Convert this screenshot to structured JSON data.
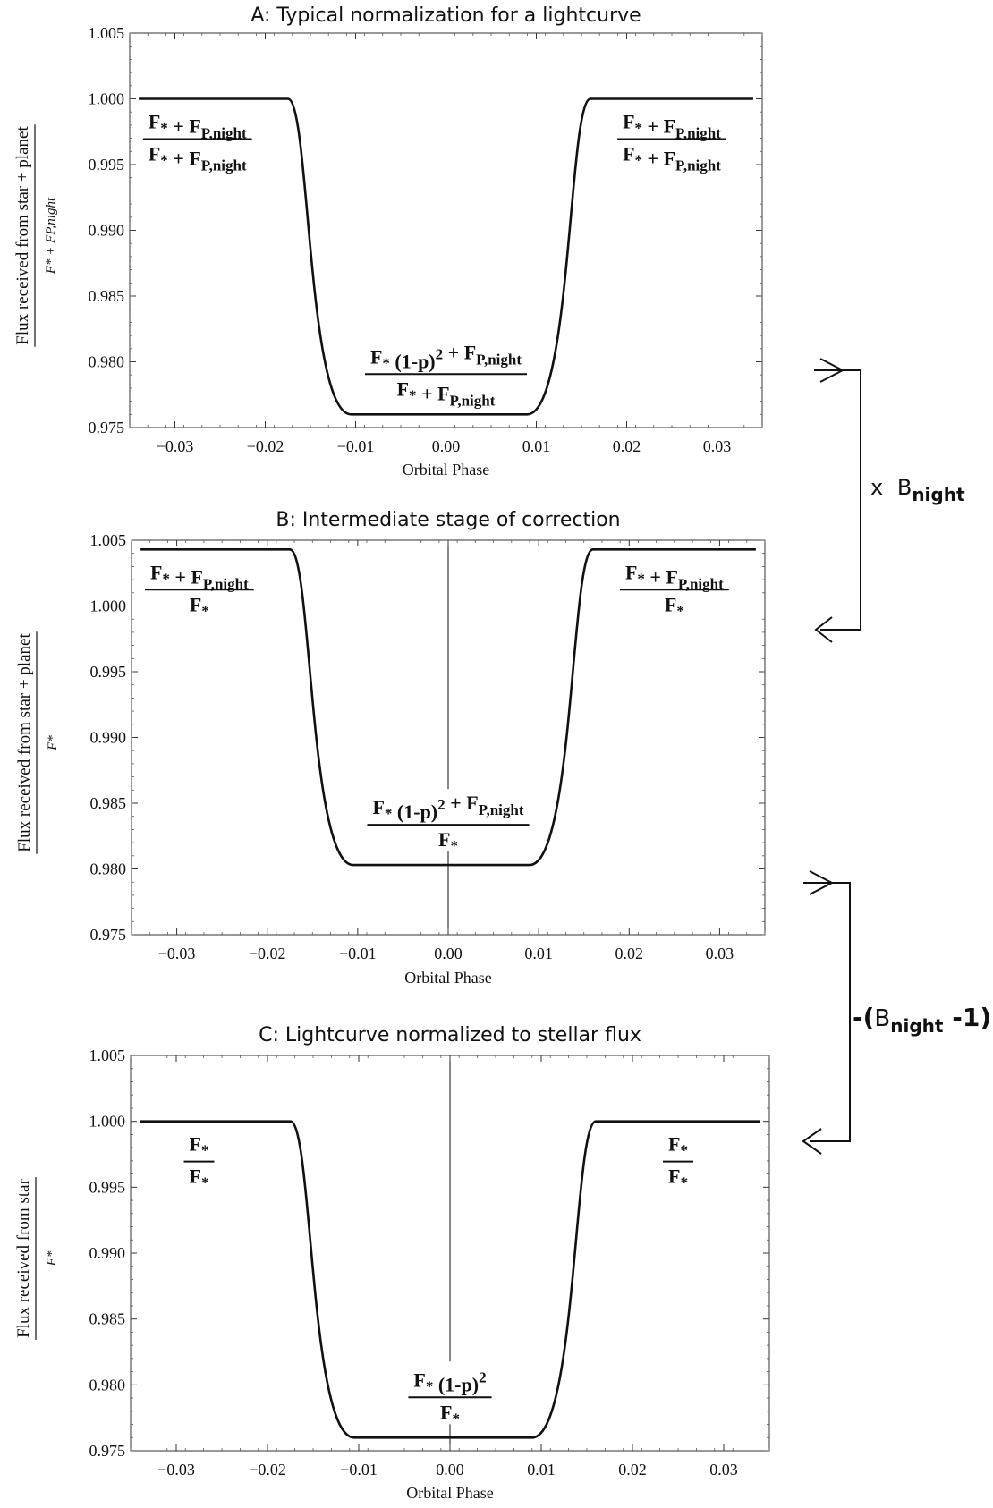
{
  "chart_data": [
    {
      "type": "line",
      "title": "A: Typical normalization for a lightcurve",
      "xlabel": "Orbital Phase",
      "ylabel_numerator": "Flux received from star + planet",
      "ylabel_denominator": "F* + FP,night",
      "xlim": [
        -0.035,
        0.035
      ],
      "ylim": [
        0.975,
        1.005
      ],
      "xticks": [
        "−0.03",
        "−0.02",
        "−0.01",
        "0.00",
        "0.01",
        "0.02",
        "0.03"
      ],
      "yticks": [
        "1.005",
        "1.000",
        "0.995",
        "0.990",
        "0.985",
        "0.980",
        "0.975"
      ],
      "x": [
        -0.034,
        -0.0175,
        -0.0105,
        0.009,
        0.016,
        0.034
      ],
      "y": [
        1.0,
        1.0,
        0.976,
        0.976,
        1.0,
        1.0
      ],
      "annotations": {
        "left": {
          "num": "F* + FP,night",
          "den": "F* + FP,night"
        },
        "right": {
          "num": "F* + FP,night",
          "den": "F* + FP,night"
        },
        "center": {
          "num": "F* (1-p)2 + FP,night",
          "den": "F* + FP,night"
        }
      }
    },
    {
      "type": "line",
      "title": "B: Intermediate stage of correction",
      "xlabel": "Orbital Phase",
      "ylabel_numerator": "Flux received from star + planet",
      "ylabel_denominator": "F*",
      "xlim": [
        -0.035,
        0.035
      ],
      "ylim": [
        0.975,
        1.005
      ],
      "xticks": [
        "−0.03",
        "−0.02",
        "−0.01",
        "0.00",
        "0.01",
        "0.02",
        "0.03"
      ],
      "yticks": [
        "1.005",
        "1.000",
        "0.995",
        "0.990",
        "0.985",
        "0.980",
        "0.975"
      ],
      "x": [
        -0.034,
        -0.0175,
        -0.0105,
        0.009,
        0.016,
        0.034
      ],
      "y": [
        1.0043,
        1.0043,
        0.9803,
        0.9803,
        1.0043,
        1.0043
      ],
      "annotations": {
        "left": {
          "num": "F* + FP,night",
          "den": "F*"
        },
        "right": {
          "num": "F* + FP,night",
          "den": "F*"
        },
        "center": {
          "num": "F* (1-p)2 + FP,night",
          "den": "F*"
        }
      }
    },
    {
      "type": "line",
      "title": "C: Lightcurve normalized to stellar flux",
      "xlabel": "Orbital Phase",
      "ylabel_numerator": "Flux received from star",
      "ylabel_denominator": "F*",
      "xlim": [
        -0.035,
        0.035
      ],
      "ylim": [
        0.975,
        1.005
      ],
      "xticks": [
        "−0.03",
        "−0.02",
        "−0.01",
        "0.00",
        "0.01",
        "0.02",
        "0.03"
      ],
      "yticks": [
        "1.005",
        "1.000",
        "0.995",
        "0.990",
        "0.985",
        "0.980",
        "0.975"
      ],
      "x": [
        -0.034,
        -0.0175,
        -0.0105,
        0.009,
        0.016,
        0.034
      ],
      "y": [
        1.0,
        1.0,
        0.976,
        0.976,
        1.0,
        1.0
      ],
      "annotations": {
        "left": {
          "num": "F*",
          "den": "F*"
        },
        "right": {
          "num": "F*",
          "den": "F*"
        },
        "center": {
          "num": "F* (1-p)2",
          "den": "F*"
        }
      }
    }
  ],
  "operations": {
    "multiply": {
      "prefix": "x",
      "symbol": "B",
      "sub": "night"
    },
    "subtract": {
      "prefix": "-(",
      "symbol": "B",
      "sub": "night",
      "suffix": " -1)"
    }
  }
}
